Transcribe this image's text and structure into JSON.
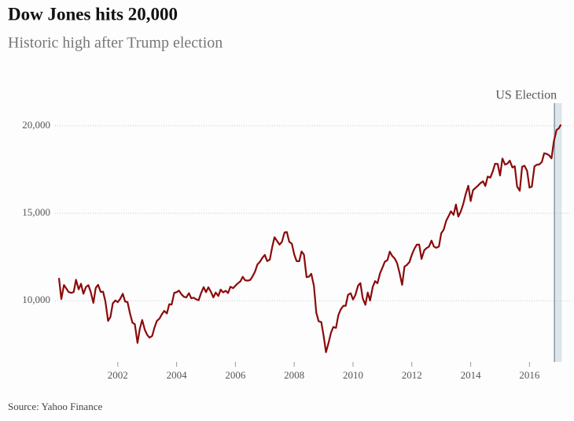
{
  "chart_data": {
    "type": "line",
    "title": "Dow Jones hits 20,000",
    "subtitle": "Historic high after Trump election",
    "source": "Source: Yahoo Finance",
    "annotation": {
      "text": "US Election",
      "x": 2016.85
    },
    "xlim": [
      2000,
      2017.1
    ],
    "xticks": [
      2002,
      2004,
      2006,
      2008,
      2010,
      2012,
      2014,
      2016
    ],
    "ylim": [
      6500,
      21300
    ],
    "yticks": [
      {
        "value": 10000,
        "label": "10,000"
      },
      {
        "value": 15000,
        "label": "15,000"
      },
      {
        "value": 20000,
        "label": "20,000"
      }
    ],
    "grid": true,
    "x": [
      2000.0,
      2000.08,
      2000.17,
      2000.25,
      2000.33,
      2000.42,
      2000.5,
      2000.58,
      2000.67,
      2000.75,
      2000.83,
      2000.92,
      2001.0,
      2001.08,
      2001.17,
      2001.25,
      2001.33,
      2001.42,
      2001.5,
      2001.58,
      2001.67,
      2001.75,
      2001.83,
      2001.92,
      2002.0,
      2002.08,
      2002.17,
      2002.25,
      2002.33,
      2002.42,
      2002.5,
      2002.58,
      2002.67,
      2002.75,
      2002.83,
      2002.92,
      2003.0,
      2003.08,
      2003.17,
      2003.25,
      2003.33,
      2003.42,
      2003.5,
      2003.58,
      2003.67,
      2003.75,
      2003.83,
      2003.92,
      2004.0,
      2004.08,
      2004.17,
      2004.25,
      2004.33,
      2004.42,
      2004.5,
      2004.58,
      2004.67,
      2004.75,
      2004.83,
      2004.92,
      2005.0,
      2005.08,
      2005.17,
      2005.25,
      2005.33,
      2005.42,
      2005.5,
      2005.58,
      2005.67,
      2005.75,
      2005.83,
      2005.92,
      2006.0,
      2006.08,
      2006.17,
      2006.25,
      2006.33,
      2006.42,
      2006.5,
      2006.58,
      2006.67,
      2006.75,
      2006.83,
      2006.92,
      2007.0,
      2007.08,
      2007.17,
      2007.25,
      2007.33,
      2007.42,
      2007.5,
      2007.58,
      2007.67,
      2007.75,
      2007.83,
      2007.92,
      2008.0,
      2008.08,
      2008.17,
      2008.25,
      2008.33,
      2008.42,
      2008.5,
      2008.58,
      2008.67,
      2008.75,
      2008.83,
      2008.92,
      2009.0,
      2009.08,
      2009.17,
      2009.25,
      2009.33,
      2009.42,
      2009.5,
      2009.58,
      2009.67,
      2009.75,
      2009.83,
      2009.92,
      2010.0,
      2010.08,
      2010.17,
      2010.25,
      2010.33,
      2010.42,
      2010.5,
      2010.58,
      2010.67,
      2010.75,
      2010.83,
      2010.92,
      2011.0,
      2011.08,
      2011.17,
      2011.25,
      2011.33,
      2011.42,
      2011.5,
      2011.58,
      2011.67,
      2011.75,
      2011.83,
      2011.92,
      2012.0,
      2012.08,
      2012.17,
      2012.25,
      2012.33,
      2012.42,
      2012.5,
      2012.58,
      2012.67,
      2012.75,
      2012.83,
      2012.92,
      2013.0,
      2013.08,
      2013.17,
      2013.25,
      2013.33,
      2013.42,
      2013.5,
      2013.58,
      2013.67,
      2013.75,
      2013.83,
      2013.92,
      2014.0,
      2014.08,
      2014.17,
      2014.25,
      2014.33,
      2014.42,
      2014.5,
      2014.58,
      2014.67,
      2014.75,
      2014.83,
      2014.92,
      2015.0,
      2015.08,
      2015.17,
      2015.25,
      2015.33,
      2015.42,
      2015.5,
      2015.58,
      2015.67,
      2015.75,
      2015.83,
      2015.92,
      2016.0,
      2016.08,
      2016.17,
      2016.25,
      2016.33,
      2016.42,
      2016.5,
      2016.58,
      2016.67,
      2016.75,
      2016.83,
      2016.92,
      2017.0,
      2017.07
    ],
    "series": [
      {
        "name": "Dow Jones",
        "color": "#8b0a0a",
        "values": [
          11300,
          10100,
          10900,
          10700,
          10500,
          10450,
          10500,
          11200,
          10650,
          10970,
          10400,
          10790,
          10890,
          10500,
          9880,
          10730,
          10910,
          10500,
          10520,
          9950,
          8850,
          9080,
          9850,
          10020,
          9920,
          10100,
          10400,
          9950,
          9930,
          9240,
          8740,
          8660,
          7590,
          8400,
          8900,
          8340,
          8050,
          7890,
          7990,
          8480,
          8850,
          8985,
          9230,
          9420,
          9275,
          9800,
          9780,
          10450,
          10490,
          10580,
          10360,
          10225,
          10190,
          10435,
          10140,
          10175,
          10080,
          10030,
          10430,
          10780,
          10490,
          10770,
          10500,
          10190,
          10470,
          10275,
          10640,
          10480,
          10570,
          10440,
          10800,
          10720,
          10860,
          10990,
          11110,
          11370,
          11170,
          11150,
          11185,
          11380,
          11680,
          12080,
          12220,
          12460,
          12620,
          12270,
          12350,
          13060,
          13630,
          13410,
          13210,
          13360,
          13900,
          13930,
          13370,
          13260,
          12650,
          12270,
          12260,
          12820,
          12640,
          11350,
          11380,
          11540,
          10850,
          9325,
          8830,
          8780,
          8000,
          7060,
          7610,
          8170,
          8500,
          8450,
          9170,
          9500,
          9710,
          9710,
          10340,
          10430,
          10070,
          10325,
          10860,
          11010,
          10140,
          9770,
          10470,
          10015,
          10790,
          11120,
          11000,
          11580,
          11890,
          12230,
          12320,
          12810,
          12570,
          12410,
          12140,
          11610,
          10910,
          11955,
          12045,
          12220,
          12630,
          12950,
          13210,
          13210,
          12390,
          12880,
          13010,
          13090,
          13440,
          13100,
          13025,
          13100,
          13860,
          14050,
          14580,
          14840,
          15115,
          14910,
          15500,
          14810,
          15130,
          15545,
          16085,
          16577,
          15700,
          16320,
          16460,
          16580,
          16720,
          16830,
          16560,
          17100,
          17040,
          17390,
          17830,
          17820,
          17160,
          18130,
          17780,
          17840,
          18010,
          17620,
          17690,
          16530,
          16285,
          17660,
          17720,
          17425,
          16470,
          16520,
          17685,
          17775,
          17790,
          17930,
          18430,
          18400,
          18310,
          18140,
          19120,
          19760,
          19860,
          20070
        ]
      }
    ]
  }
}
